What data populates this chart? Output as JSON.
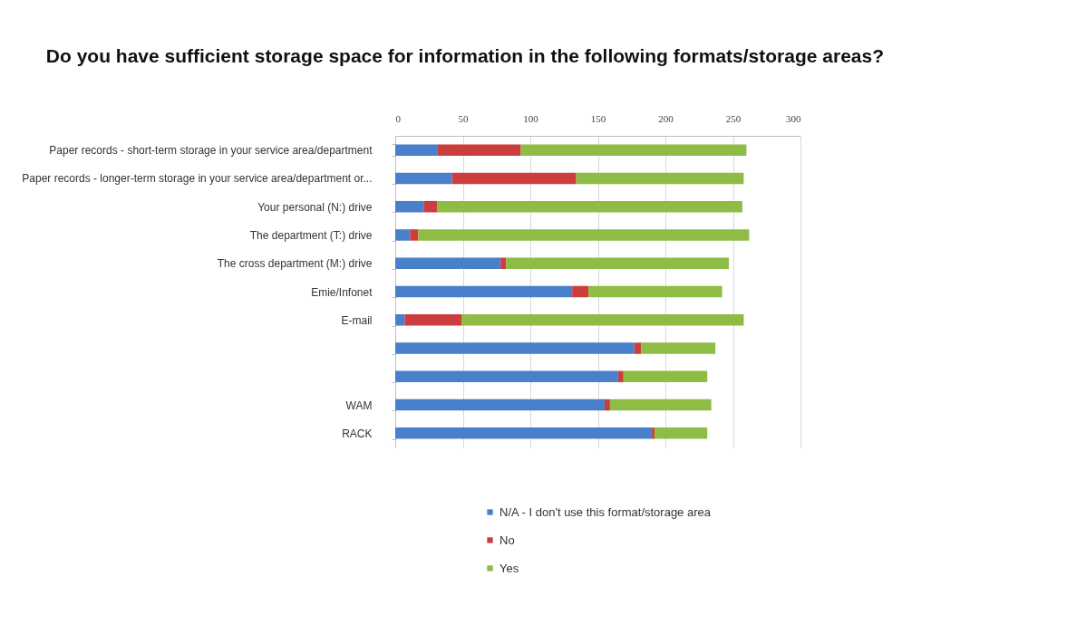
{
  "chart_data": {
    "type": "bar",
    "title": "Do you have sufficient storage space for information in the following formats/storage areas?",
    "categories": [
      "Paper records - short-term storage in your service area/department",
      "Paper records - longer-term storage in your service area/department or...",
      "Your personal (N:) drive",
      "The department (T:) drive",
      "The cross department (M:) drive",
      "Emie/Infonet",
      "E-mail",
      null,
      null,
      "WAM",
      "RACK"
    ],
    "series": [
      {
        "name": "N/A - I don't use this format/storage area",
        "color": "#4a7fcb",
        "values": [
          31,
          42,
          21,
          11,
          78,
          131,
          7,
          177,
          165,
          155,
          190
        ]
      },
      {
        "name": "No",
        "color": "#cc3e3e",
        "values": [
          62,
          92,
          10,
          6,
          4,
          12,
          42,
          5,
          4,
          4,
          2
        ]
      },
      {
        "name": "Yes",
        "color": "#8fbc45",
        "values": [
          167,
          124,
          226,
          245,
          165,
          99,
          209,
          55,
          62,
          75,
          39
        ]
      }
    ],
    "orientation": "horizontal",
    "stacked": true,
    "xlim": [
      0,
      300
    ],
    "xticks": [
      0,
      50,
      100,
      150,
      200,
      250,
      300
    ],
    "grid": "x",
    "legend": "bottom"
  }
}
